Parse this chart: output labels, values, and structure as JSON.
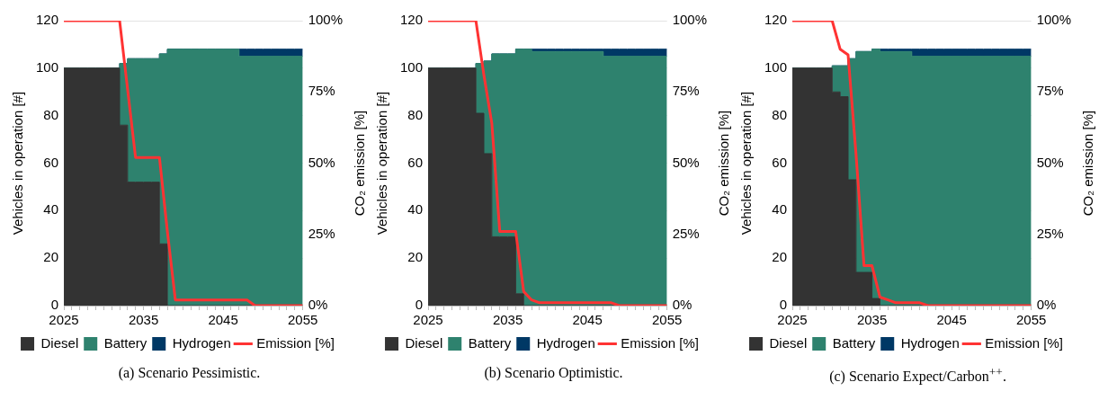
{
  "chart_data": [
    {
      "type": "area",
      "stacked": true,
      "ylabel": "Vehicles in operation [#]",
      "y2label": "CO₂ emission [%]",
      "legend": "bottom",
      "grid": "y",
      "x": [
        2025,
        2026,
        2027,
        2028,
        2029,
        2030,
        2031,
        2032,
        2033,
        2034,
        2035,
        2036,
        2037,
        2038,
        2039,
        2040,
        2041,
        2042,
        2043,
        2044,
        2045,
        2046,
        2047,
        2048,
        2049,
        2050,
        2051,
        2052,
        2053,
        2054,
        2055
      ],
      "xlim": [
        2025,
        2055
      ],
      "xticks": [
        2025,
        {
          "value": 2026,
          "label": null
        },
        {
          "value": 2027,
          "label": null
        },
        {
          "value": 2028,
          "label": null
        },
        {
          "value": 2029,
          "label": null
        },
        {
          "value": 2030,
          "label": null
        },
        {
          "value": 2031,
          "label": null
        },
        {
          "value": 2032,
          "label": null
        },
        {
          "value": 2033,
          "label": null
        },
        {
          "value": 2034,
          "label": null
        },
        2035,
        {
          "value": 2036,
          "label": null
        },
        {
          "value": 2037,
          "label": null
        },
        {
          "value": 2038,
          "label": null
        },
        {
          "value": 2039,
          "label": null
        },
        {
          "value": 2040,
          "label": null
        },
        {
          "value": 2041,
          "label": null
        },
        {
          "value": 2042,
          "label": null
        },
        {
          "value": 2043,
          "label": null
        },
        {
          "value": 2044,
          "label": null
        },
        2045,
        {
          "value": 2046,
          "label": null
        },
        {
          "value": 2047,
          "label": null
        },
        {
          "value": 2048,
          "label": null
        },
        {
          "value": 2049,
          "label": null
        },
        {
          "value": 2050,
          "label": null
        },
        {
          "value": 2051,
          "label": null
        },
        {
          "value": 2052,
          "label": null
        },
        {
          "value": 2053,
          "label": null
        },
        {
          "value": 2054,
          "label": null
        },
        2055
      ],
      "ylim": [
        0,
        120
      ],
      "yticks": [
        0,
        20,
        40,
        60,
        80,
        100,
        120
      ],
      "y2lim": [
        0,
        100
      ],
      "y2ticks": [
        {
          "value": 0,
          "label": "0%"
        },
        {
          "value": 25,
          "label": "25%"
        },
        {
          "value": 50,
          "label": "50%"
        },
        {
          "value": 75,
          "label": "75%"
        },
        {
          "value": 100,
          "label": "100%"
        }
      ],
      "annotations": [
        "(a) Scenario Pessimistic."
      ],
      "series": [
        {
          "name": "Diesel",
          "color": "#333333",
          "values": [
            100,
            100,
            100,
            100,
            100,
            100,
            100,
            100,
            76,
            52,
            52,
            52,
            52,
            26,
            0,
            0,
            0,
            0,
            0,
            0,
            0,
            0,
            0,
            0,
            0,
            0,
            0,
            0,
            0,
            0,
            0
          ]
        },
        {
          "name": "Battery",
          "color": "#2e826e",
          "values": [
            0,
            0,
            0,
            0,
            0,
            0,
            0,
            0,
            26,
            52,
            52,
            52,
            52,
            80,
            108,
            108,
            108,
            108,
            108,
            108,
            108,
            108,
            108,
            105,
            105,
            105,
            105,
            105,
            105,
            105,
            105
          ]
        },
        {
          "name": "Hydrogen",
          "color": "#003865",
          "values": [
            0,
            0,
            0,
            0,
            0,
            0,
            0,
            0,
            0,
            0,
            0,
            0,
            0,
            0,
            0,
            0,
            0,
            0,
            0,
            0,
            0,
            0,
            0,
            3,
            3,
            3,
            3,
            3,
            3,
            3,
            3
          ]
        },
        {
          "name": "Emission [%]",
          "type": "line",
          "axis": "y2",
          "color": "#ff3333",
          "values": [
            100,
            100,
            100,
            100,
            100,
            100,
            100,
            100,
            76,
            52,
            52,
            52,
            52,
            26,
            2,
            2,
            2,
            2,
            2,
            2,
            2,
            2,
            2,
            2,
            0,
            0,
            0,
            0,
            0,
            0,
            0
          ]
        }
      ]
    },
    {
      "type": "area",
      "stacked": true,
      "ylabel": "Vehicles in operation [#]",
      "y2label": "CO₂ emission [%]",
      "legend": "bottom",
      "grid": "y",
      "x": [
        2025,
        2026,
        2027,
        2028,
        2029,
        2030,
        2031,
        2032,
        2033,
        2034,
        2035,
        2036,
        2037,
        2038,
        2039,
        2040,
        2041,
        2042,
        2043,
        2044,
        2045,
        2046,
        2047,
        2048,
        2049,
        2050,
        2051,
        2052,
        2053,
        2054,
        2055
      ],
      "xlim": [
        2025,
        2055
      ],
      "xticks": [
        2025,
        {
          "value": 2026,
          "label": null
        },
        {
          "value": 2027,
          "label": null
        },
        {
          "value": 2028,
          "label": null
        },
        {
          "value": 2029,
          "label": null
        },
        {
          "value": 2030,
          "label": null
        },
        {
          "value": 2031,
          "label": null
        },
        {
          "value": 2032,
          "label": null
        },
        {
          "value": 2033,
          "label": null
        },
        {
          "value": 2034,
          "label": null
        },
        2035,
        {
          "value": 2036,
          "label": null
        },
        {
          "value": 2037,
          "label": null
        },
        {
          "value": 2038,
          "label": null
        },
        {
          "value": 2039,
          "label": null
        },
        {
          "value": 2040,
          "label": null
        },
        {
          "value": 2041,
          "label": null
        },
        {
          "value": 2042,
          "label": null
        },
        {
          "value": 2043,
          "label": null
        },
        {
          "value": 2044,
          "label": null
        },
        2045,
        {
          "value": 2046,
          "label": null
        },
        {
          "value": 2047,
          "label": null
        },
        {
          "value": 2048,
          "label": null
        },
        {
          "value": 2049,
          "label": null
        },
        {
          "value": 2050,
          "label": null
        },
        {
          "value": 2051,
          "label": null
        },
        {
          "value": 2052,
          "label": null
        },
        {
          "value": 2053,
          "label": null
        },
        {
          "value": 2054,
          "label": null
        },
        2055
      ],
      "ylim": [
        0,
        120
      ],
      "yticks": [
        0,
        20,
        40,
        60,
        80,
        100,
        120
      ],
      "y2lim": [
        0,
        100
      ],
      "y2ticks": [
        {
          "value": 0,
          "label": "0%"
        },
        {
          "value": 25,
          "label": "25%"
        },
        {
          "value": 50,
          "label": "50%"
        },
        {
          "value": 75,
          "label": "75%"
        },
        {
          "value": 100,
          "label": "100%"
        }
      ],
      "annotations": [
        "(b) Scenario Optimistic."
      ],
      "series": [
        {
          "name": "Diesel",
          "color": "#333333",
          "values": [
            100,
            100,
            100,
            100,
            100,
            100,
            100,
            81,
            64,
            29,
            29,
            29,
            5,
            0,
            0,
            0,
            0,
            0,
            0,
            0,
            0,
            0,
            0,
            0,
            0,
            0,
            0,
            0,
            0,
            0,
            0
          ]
        },
        {
          "name": "Battery",
          "color": "#2e826e",
          "values": [
            0,
            0,
            0,
            0,
            0,
            0,
            0,
            21,
            39,
            77,
            77,
            77,
            103,
            108,
            107,
            107,
            107,
            107,
            107,
            107,
            107,
            107,
            107,
            105,
            105,
            105,
            105,
            105,
            105,
            105,
            105
          ]
        },
        {
          "name": "Hydrogen",
          "color": "#003865",
          "values": [
            0,
            0,
            0,
            0,
            0,
            0,
            0,
            0,
            0,
            0,
            0,
            0,
            0,
            0,
            1,
            1,
            1,
            1,
            1,
            1,
            1,
            1,
            1,
            3,
            3,
            3,
            3,
            3,
            3,
            3,
            3
          ]
        },
        {
          "name": "Emission [%]",
          "type": "line",
          "axis": "y2",
          "color": "#ff3333",
          "values": [
            100,
            100,
            100,
            100,
            100,
            100,
            100,
            81,
            64,
            26,
            26,
            26,
            5,
            2,
            1,
            1,
            1,
            1,
            1,
            1,
            1,
            1,
            1,
            1,
            0,
            0,
            0,
            0,
            0,
            0,
            0
          ]
        }
      ]
    },
    {
      "type": "area",
      "stacked": true,
      "ylabel": "Vehicles in operation [#]",
      "y2label": "CO₂ emission [%]",
      "legend": "bottom",
      "grid": "y",
      "x": [
        2025,
        2026,
        2027,
        2028,
        2029,
        2030,
        2031,
        2032,
        2033,
        2034,
        2035,
        2036,
        2037,
        2038,
        2039,
        2040,
        2041,
        2042,
        2043,
        2044,
        2045,
        2046,
        2047,
        2048,
        2049,
        2050,
        2051,
        2052,
        2053,
        2054,
        2055
      ],
      "xlim": [
        2025,
        2055
      ],
      "xticks": [
        2025,
        {
          "value": 2026,
          "label": null
        },
        {
          "value": 2027,
          "label": null
        },
        {
          "value": 2028,
          "label": null
        },
        {
          "value": 2029,
          "label": null
        },
        {
          "value": 2030,
          "label": null
        },
        {
          "value": 2031,
          "label": null
        },
        {
          "value": 2032,
          "label": null
        },
        {
          "value": 2033,
          "label": null
        },
        {
          "value": 2034,
          "label": null
        },
        2035,
        {
          "value": 2036,
          "label": null
        },
        {
          "value": 2037,
          "label": null
        },
        {
          "value": 2038,
          "label": null
        },
        {
          "value": 2039,
          "label": null
        },
        {
          "value": 2040,
          "label": null
        },
        {
          "value": 2041,
          "label": null
        },
        {
          "value": 2042,
          "label": null
        },
        {
          "value": 2043,
          "label": null
        },
        {
          "value": 2044,
          "label": null
        },
        2045,
        {
          "value": 2046,
          "label": null
        },
        {
          "value": 2047,
          "label": null
        },
        {
          "value": 2048,
          "label": null
        },
        {
          "value": 2049,
          "label": null
        },
        {
          "value": 2050,
          "label": null
        },
        {
          "value": 2051,
          "label": null
        },
        {
          "value": 2052,
          "label": null
        },
        {
          "value": 2053,
          "label": null
        },
        {
          "value": 2054,
          "label": null
        },
        2055
      ],
      "ylim": [
        0,
        120
      ],
      "yticks": [
        0,
        20,
        40,
        60,
        80,
        100,
        120
      ],
      "y2lim": [
        0,
        100
      ],
      "y2ticks": [
        {
          "value": 0,
          "label": "0%"
        },
        {
          "value": 25,
          "label": "25%"
        },
        {
          "value": 50,
          "label": "50%"
        },
        {
          "value": 75,
          "label": "75%"
        },
        {
          "value": 100,
          "label": "100%"
        }
      ],
      "annotations": [
        "(c) Scenario Expect/Carbon$^{++}$."
      ],
      "series": [
        {
          "name": "Diesel",
          "color": "#333333",
          "values": [
            100,
            100,
            100,
            100,
            100,
            100,
            90,
            88,
            53,
            14,
            14,
            3,
            0,
            0,
            0,
            0,
            0,
            0,
            0,
            0,
            0,
            0,
            0,
            0,
            0,
            0,
            0,
            0,
            0,
            0,
            0
          ]
        },
        {
          "name": "Battery",
          "color": "#2e826e",
          "values": [
            0,
            0,
            0,
            0,
            0,
            0,
            11,
            13,
            51,
            93,
            93,
            105,
            107,
            107,
            107,
            107,
            105,
            105,
            105,
            105,
            105,
            105,
            105,
            105,
            105,
            105,
            105,
            105,
            105,
            105,
            105
          ]
        },
        {
          "name": "Hydrogen",
          "color": "#003865",
          "values": [
            0,
            0,
            0,
            0,
            0,
            0,
            0,
            0,
            0,
            0,
            0,
            0,
            1,
            1,
            1,
            1,
            3,
            3,
            3,
            3,
            3,
            3,
            3,
            3,
            3,
            3,
            3,
            3,
            3,
            3,
            3
          ]
        },
        {
          "name": "Emission [%]",
          "type": "line",
          "axis": "y2",
          "color": "#ff3333",
          "values": [
            100,
            100,
            100,
            100,
            100,
            100,
            90,
            88,
            53,
            14,
            14,
            3,
            2,
            1,
            1,
            1,
            1,
            0,
            0,
            0,
            0,
            0,
            0,
            0,
            0,
            0,
            0,
            0,
            0,
            0,
            0
          ]
        }
      ]
    }
  ]
}
